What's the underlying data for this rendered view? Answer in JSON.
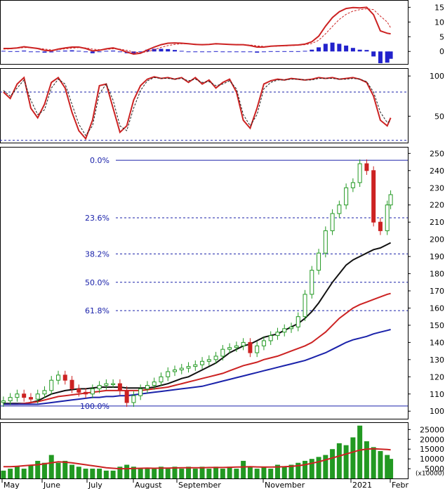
{
  "chart_data": [
    {
      "type": "line",
      "panel": "macd",
      "y_ticks": [
        15,
        10,
        5,
        0
      ],
      "ylim": [
        -4,
        17
      ],
      "x": [
        0,
        10,
        20,
        30,
        40,
        50,
        60,
        70,
        80,
        90,
        100,
        110,
        120,
        130,
        140,
        150,
        160,
        170,
        180,
        190,
        200,
        210,
        220,
        230,
        240,
        250,
        260,
        270,
        280,
        290,
        300,
        310,
        320,
        330,
        340,
        350,
        360,
        370,
        380,
        390,
        400,
        410,
        420,
        430,
        440,
        450,
        460,
        470,
        480,
        490,
        500,
        510,
        520,
        530,
        540,
        550,
        560,
        565
      ],
      "series": [
        {
          "values": [
            1,
            1,
            1.2,
            1.6,
            1.3,
            1,
            0.4,
            0.2,
            0.8,
            1.2,
            1.5,
            1.5,
            1,
            0.2,
            0.4,
            0.9,
            1.2,
            0.6,
            -0.2,
            -0.9,
            -0.6,
            0.5,
            1.5,
            2.3,
            2.8,
            2.9,
            2.8,
            2.6,
            2.4,
            2.3,
            2.4,
            2.6,
            2.5,
            2.4,
            2.3,
            2.3,
            2.0,
            1.5,
            1.5,
            1.8,
            1.9,
            2.0,
            2.1,
            2.2,
            2.5,
            3.3,
            5.2,
            8.6,
            11.5,
            13.5,
            14.6,
            14.9,
            14.8,
            15.0,
            12.5,
            7.0,
            6.2,
            6.0
          ],
          "color": "#cc2222"
        },
        {
          "values": [
            0.8,
            0.9,
            1.1,
            1.3,
            1.3,
            1.1,
            0.8,
            0.5,
            0.6,
            0.9,
            1.1,
            1.3,
            1.2,
            0.8,
            0.6,
            0.7,
            0.9,
            0.8,
            0.4,
            -0.2,
            -0.4,
            -0.1,
            0.6,
            1.4,
            2.0,
            2.4,
            2.6,
            2.6,
            2.5,
            2.4,
            2.4,
            2.5,
            2.5,
            2.4,
            2.4,
            2.3,
            2.2,
            1.9,
            1.7,
            1.7,
            1.8,
            1.9,
            2.0,
            2.1,
            2.3,
            2.7,
            3.8,
            6.0,
            8.5,
            10.9,
            12.6,
            13.7,
            14.2,
            14.5,
            14.2,
            12.0,
            10.0,
            8.0
          ],
          "color": "#cc2222",
          "dashed": true
        }
      ],
      "histogram": [
        0.2,
        0.1,
        0.1,
        0.3,
        0.0,
        -0.1,
        -0.4,
        -0.3,
        0.2,
        0.3,
        0.4,
        0.2,
        -0.2,
        -0.6,
        -0.2,
        0.2,
        0.3,
        -0.2,
        -0.6,
        -0.7,
        -0.2,
        0.6,
        0.9,
        0.9,
        0.8,
        0.5,
        0.2,
        0.0,
        -0.1,
        -0.1,
        0.0,
        0.1,
        0.0,
        0.0,
        -0.1,
        0.0,
        -0.2,
        -0.4,
        -0.2,
        0.1,
        0.1,
        0.1,
        0.1,
        0.1,
        0.2,
        0.6,
        1.4,
        2.6,
        3.0,
        2.6,
        2.0,
        1.2,
        0.6,
        0.5,
        -1.7,
        -4.0,
        -3.8,
        -2.5
      ]
    },
    {
      "type": "line",
      "panel": "stochastic",
      "y_ticks": [
        100,
        50
      ],
      "ylim": [
        18,
        108
      ],
      "reference_lines": [
        80,
        20
      ],
      "x": [
        0,
        10,
        20,
        30,
        40,
        50,
        60,
        70,
        80,
        90,
        100,
        110,
        120,
        130,
        140,
        150,
        160,
        170,
        180,
        190,
        200,
        210,
        220,
        230,
        240,
        250,
        260,
        270,
        280,
        290,
        300,
        310,
        320,
        330,
        340,
        350,
        360,
        370,
        380,
        390,
        400,
        410,
        420,
        430,
        440,
        450,
        460,
        470,
        480,
        490,
        500,
        510,
        520,
        530,
        540,
        550,
        560,
        565
      ],
      "series": [
        {
          "values": [
            80,
            72,
            90,
            98,
            60,
            48,
            65,
            92,
            98,
            85,
            55,
            32,
            22,
            45,
            88,
            90,
            60,
            30,
            38,
            70,
            88,
            96,
            99,
            97,
            98,
            96,
            98,
            92,
            98,
            90,
            95,
            85,
            92,
            96,
            80,
            45,
            35,
            60,
            90,
            94,
            96,
            95,
            97,
            96,
            95,
            96,
            98,
            97,
            98,
            96,
            97,
            98,
            96,
            92,
            75,
            45,
            38,
            48
          ],
          "color": "#cc2222"
        },
        {
          "values": [
            82,
            75,
            85,
            95,
            70,
            52,
            58,
            85,
            96,
            90,
            65,
            40,
            26,
            38,
            78,
            90,
            70,
            38,
            32,
            60,
            82,
            94,
            98,
            97,
            97,
            96,
            97,
            94,
            96,
            92,
            93,
            88,
            90,
            94,
            84,
            52,
            38,
            52,
            84,
            92,
            95,
            95,
            96,
            96,
            95,
            95,
            97,
            97,
            97,
            96,
            96,
            97,
            96,
            93,
            80,
            55,
            42,
            44
          ],
          "color": "#222222",
          "dashed": true
        }
      ]
    },
    {
      "type": "line",
      "panel": "price",
      "y_ticks": [
        250,
        240,
        230,
        220,
        210,
        200,
        190,
        180,
        170,
        160,
        150,
        140,
        130,
        120,
        110,
        100
      ],
      "ylim": [
        96,
        253
      ],
      "fib_levels": [
        {
          "label": "0.0%",
          "value": 246
        },
        {
          "label": "23.6%",
          "value": 212.5
        },
        {
          "label": "38.2%",
          "value": 191.5
        },
        {
          "label": "50.0%",
          "value": 175
        },
        {
          "label": "61.8%",
          "value": 158.5
        },
        {
          "label": "100.0%",
          "value": 103
        }
      ],
      "x": [
        0,
        10,
        20,
        30,
        40,
        50,
        60,
        70,
        80,
        90,
        100,
        110,
        120,
        130,
        140,
        150,
        160,
        170,
        180,
        190,
        200,
        210,
        220,
        230,
        240,
        250,
        260,
        270,
        280,
        290,
        300,
        310,
        320,
        330,
        340,
        350,
        360,
        370,
        380,
        390,
        400,
        410,
        420,
        430,
        440,
        450,
        460,
        470,
        480,
        490,
        500,
        510,
        520,
        530,
        540,
        550,
        560,
        565
      ],
      "candles": [
        106,
        108,
        110,
        108,
        107,
        110,
        112,
        118,
        121,
        118,
        113,
        111,
        110,
        113,
        115,
        116,
        116,
        112,
        105,
        109,
        113,
        115,
        117,
        120,
        123,
        124,
        125,
        126,
        127,
        129,
        130,
        132,
        136,
        137,
        138,
        140,
        134,
        138,
        141,
        144,
        146,
        148,
        149,
        155,
        168,
        182,
        192,
        205,
        215,
        220,
        230,
        233,
        244,
        240,
        210,
        205,
        220,
        226
      ],
      "series": [
        {
          "name": "",
          "values": [
            104.5,
            104.5,
            104.5,
            104.5,
            105,
            106,
            108,
            110,
            111,
            112,
            112.5,
            113,
            113,
            113.5,
            114,
            114,
            114,
            114,
            113.5,
            113.5,
            113.5,
            113.5,
            114,
            115,
            116,
            117.5,
            119,
            120,
            122,
            124,
            126,
            128,
            131,
            134,
            136,
            138,
            139,
            141,
            143,
            144,
            145,
            147,
            149,
            151,
            154,
            158,
            163,
            169,
            175,
            180,
            185,
            188,
            190,
            192,
            194,
            195,
            197,
            198
          ],
          "color": "#111111"
        },
        {
          "name": "",
          "values": [
            104,
            104,
            104,
            104.5,
            105,
            105.5,
            106.5,
            107.5,
            108.5,
            109,
            109.5,
            110,
            110.5,
            111,
            111.5,
            112,
            112,
            112,
            112,
            112,
            112,
            112.5,
            113,
            113.5,
            114,
            115,
            116,
            117,
            118,
            119,
            120,
            121,
            122,
            123.5,
            125,
            126.5,
            127.5,
            128.5,
            130,
            131,
            132,
            133.5,
            135,
            136.5,
            138,
            140,
            143,
            146,
            150,
            154,
            157,
            160,
            162,
            163.5,
            165,
            166.5,
            168,
            168.5
          ],
          "color": "#cc2222"
        },
        {
          "name": "",
          "values": [
            104,
            104,
            104,
            104,
            104,
            104,
            104.5,
            105,
            105.5,
            106,
            106.5,
            107,
            107.5,
            108,
            108,
            108.5,
            108.5,
            109,
            109,
            109.5,
            110,
            110.5,
            111,
            111.5,
            112,
            112.5,
            113,
            113.5,
            114,
            114.5,
            115.5,
            116.5,
            117.5,
            118.5,
            119.5,
            120.5,
            121.5,
            122.5,
            123.5,
            124.5,
            125.5,
            126.5,
            127.5,
            128.5,
            129.5,
            131,
            132.5,
            134,
            136,
            138,
            140,
            141.5,
            142.5,
            143.5,
            145,
            146,
            147,
            147.5
          ],
          "color": "#1a22aa"
        }
      ]
    },
    {
      "type": "bar",
      "panel": "volume",
      "y_ticks": [
        "25000",
        "20000",
        "15000",
        "10000",
        "5000"
      ],
      "unit_label": "(x10000)",
      "ylim": [
        0,
        28000
      ],
      "x": [
        0,
        10,
        20,
        30,
        40,
        50,
        60,
        70,
        80,
        90,
        100,
        110,
        120,
        130,
        140,
        150,
        160,
        170,
        180,
        190,
        200,
        210,
        220,
        230,
        240,
        250,
        260,
        270,
        280,
        290,
        300,
        310,
        320,
        330,
        340,
        350,
        360,
        370,
        380,
        390,
        400,
        410,
        420,
        430,
        440,
        450,
        460,
        470,
        480,
        490,
        500,
        510,
        520,
        530,
        540,
        550,
        560,
        565
      ],
      "values": [
        4000,
        5000,
        6000,
        5000,
        7000,
        9000,
        8000,
        12000,
        8000,
        9000,
        7000,
        6000,
        5000,
        5000,
        5000,
        4000,
        4000,
        6000,
        7000,
        6000,
        5000,
        5000,
        5000,
        6000,
        5000,
        6000,
        5000,
        6000,
        5000,
        6000,
        5000,
        6000,
        5000,
        6000,
        5000,
        9000,
        6000,
        5000,
        6000,
        5000,
        7000,
        6000,
        7000,
        8000,
        9000,
        10000,
        11000,
        12000,
        15000,
        18000,
        17000,
        21000,
        27000,
        19000,
        16000,
        14000,
        12000,
        10000
      ],
      "series": [
        {
          "values": [
            6000,
            6000,
            6200,
            6500,
            6800,
            7000,
            7500,
            8000,
            8500,
            8300,
            8000,
            7500,
            7000,
            6500,
            6000,
            5500,
            5200,
            5000,
            5000,
            5100,
            5200,
            5300,
            5200,
            5300,
            5300,
            5400,
            5500,
            5500,
            5500,
            5500,
            5600,
            5600,
            5600,
            5700,
            5800,
            5900,
            6000,
            5900,
            5800,
            5800,
            5900,
            6000,
            6200,
            6500,
            7000,
            7800,
            8500,
            9500,
            10500,
            11500,
            12500,
            13500,
            14500,
            15000,
            15200,
            15000,
            14800,
            14600
          ],
          "color": "#cc2222"
        }
      ]
    }
  ],
  "x_axis": {
    "labels": [
      "May",
      "June",
      "July",
      "August",
      "September",
      "November",
      "2021",
      "Febr"
    ]
  }
}
